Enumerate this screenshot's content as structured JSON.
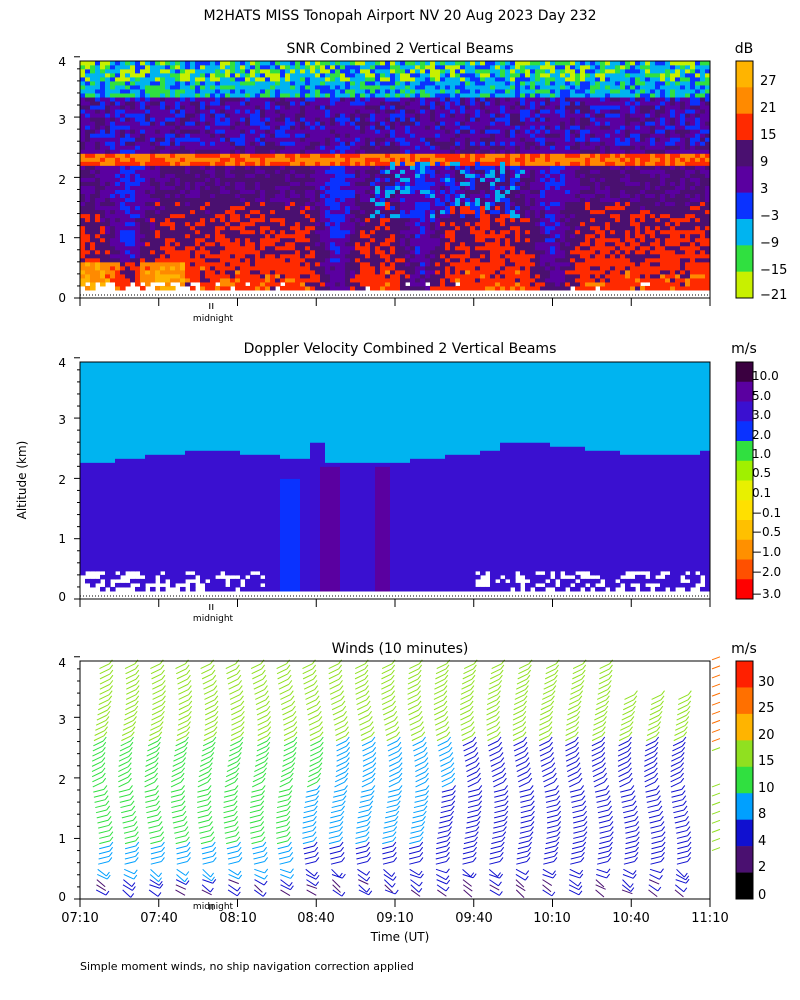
{
  "header": {
    "title": "M2HATS MISS Tonopah Airport NV  20 Aug 2023 Day 232",
    "footnote": "Simple moment winds, no ship navigation correction applied"
  },
  "colors": {
    "snr_scale": [
      "#c8f000",
      "#30e040",
      "#00b4f0",
      "#0a32ff",
      "#5a00a0",
      "#4a1070",
      "#ff2a00",
      "#ff8a00",
      "#ffb400"
    ],
    "doppler_scale": [
      "#ff0000",
      "#ff5000",
      "#ff9000",
      "#ffc000",
      "#ffe000",
      "#e8f000",
      "#a0f000",
      "#30e040",
      "#0a32ff",
      "#3a10d0",
      "#5a00a0",
      "#3a0040"
    ],
    "wind_scale": [
      "#000000",
      "#4a1070",
      "#1010d0",
      "#00a0ff",
      "#30e040",
      "#90e020",
      "#ffb400",
      "#ff7000",
      "#ff2000"
    ]
  },
  "chart_data": [
    {
      "type": "heatmap",
      "title": "SNR Combined 2 Vertical Beams",
      "ylabel": "",
      "xlim_minutes_utc": [
        430,
        670
      ],
      "ylim": [
        0,
        4
      ],
      "yticks": [
        "0",
        "1",
        "2",
        "3",
        "4"
      ],
      "midnight_marker": "midnight",
      "colorbar": {
        "unit": "dB",
        "labels": [
          "27",
          "21",
          "15",
          "9",
          "3",
          "−3",
          "−9",
          "−15",
          "−21"
        ]
      },
      "features": {
        "bright_layer_height_km": 2.3
      }
    },
    {
      "type": "heatmap",
      "title": "Doppler Velocity Combined 2 Vertical Beams",
      "ylabel": "Altitude (km)",
      "xlim_minutes_utc": [
        430,
        670
      ],
      "ylim": [
        0,
        4
      ],
      "yticks": [
        "0",
        "1",
        "2",
        "3",
        "4"
      ],
      "midnight_marker": "midnight",
      "colorbar": {
        "unit": "m/s",
        "labels": [
          "10.0",
          "5.0",
          "3.0",
          "2.0",
          "1.0",
          "0.5",
          "0.1",
          "−0.1",
          "−0.5",
          "−1.0",
          "−2.0",
          "−3.0"
        ]
      },
      "features": {
        "layer_top_km": 2.35
      }
    },
    {
      "type": "scatter",
      "title": "Winds (10 minutes)",
      "xlabel": "Time (UT)",
      "xlim_minutes_utc": [
        430,
        670
      ],
      "ylim": [
        0,
        4
      ],
      "yticks": [
        "0",
        "1",
        "2",
        "3",
        "4"
      ],
      "midnight_marker": "midnight",
      "xtick_labels": [
        "07:10",
        "07:40",
        "08:10",
        "08:40",
        "09:10",
        "09:40",
        "10:10",
        "10:40",
        "11:10"
      ],
      "profile_count": 23,
      "colorbar": {
        "unit": "m/s",
        "labels": [
          "30",
          "25",
          "20",
          "15",
          "10",
          "8",
          "4",
          "2",
          "0"
        ]
      }
    }
  ]
}
